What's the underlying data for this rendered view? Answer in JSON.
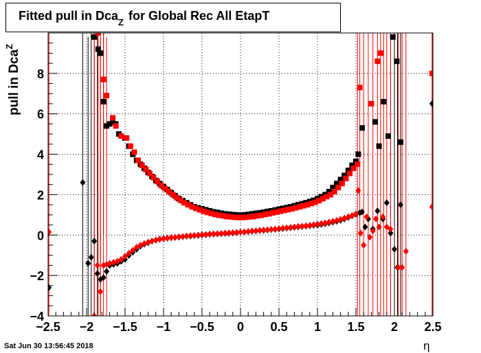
{
  "title": {
    "main": "Fitted pull in Dca",
    "sub": "Z",
    "rest": " for Global Rec All EtapT"
  },
  "axes": {
    "ylabel_main": "pull in Dca",
    "ylabel_sub": "Z",
    "xlabel": "η"
  },
  "timestamp": "Sat Jun 30 13:56:45 2018",
  "chart_data": {
    "type": "scatter",
    "xlim": [
      -2.5,
      2.5
    ],
    "ylim": [
      -4,
      10
    ],
    "x_ticks": [
      -2.5,
      -2,
      -1.5,
      -1,
      -0.5,
      0,
      0.5,
      1,
      1.5,
      2,
      2.5
    ],
    "x_tick_labels": [
      "−2.5",
      "−2",
      "−1.5",
      "−1",
      "−0.5",
      "0",
      "0.5",
      "1",
      "1.5",
      "2",
      "2.5"
    ],
    "y_ticks": [
      -4,
      -2,
      0,
      2,
      4,
      6,
      8
    ],
    "y_tick_labels": [
      "−4",
      "−2",
      "0",
      "2",
      "4",
      "6",
      "8"
    ],
    "series": [
      {
        "marker": "square",
        "color": "#000000",
        "x": [
          -1.98,
          -1.9,
          -1.85,
          -1.82,
          -1.78,
          -1.74,
          -1.7,
          -1.66,
          -1.62,
          -1.58,
          -1.5,
          -1.45,
          -1.4,
          -1.35,
          -1.3,
          -1.25,
          -1.2,
          -1.15,
          -1.1,
          -1.05,
          -1.0,
          -0.95,
          -0.9,
          -0.85,
          -0.8,
          -0.75,
          -0.7,
          -0.65,
          -0.6,
          -0.55,
          -0.5,
          -0.45,
          -0.4,
          -0.35,
          -0.3,
          -0.25,
          -0.2,
          -0.15,
          -0.1,
          -0.05,
          0.0,
          0.05,
          0.1,
          0.15,
          0.2,
          0.25,
          0.3,
          0.35,
          0.4,
          0.45,
          0.5,
          0.55,
          0.6,
          0.65,
          0.7,
          0.75,
          0.8,
          0.85,
          0.9,
          0.95,
          1.0,
          1.05,
          1.1,
          1.15,
          1.2,
          1.25,
          1.3,
          1.35,
          1.4,
          1.45,
          1.5,
          1.53,
          1.58,
          1.75,
          1.8,
          1.86,
          1.92,
          1.98,
          2.03,
          2.08
        ],
        "y": [
          10.5,
          9.8,
          9.2,
          9.0,
          6.6,
          5.4,
          5.5,
          5.6,
          5.5,
          5.0,
          4.8,
          4.4,
          4.0,
          3.7,
          3.5,
          3.3,
          3.1,
          2.9,
          2.7,
          2.55,
          2.4,
          2.25,
          2.1,
          1.95,
          1.8,
          1.7,
          1.6,
          1.5,
          1.4,
          1.35,
          1.3,
          1.25,
          1.2,
          1.15,
          1.12,
          1.08,
          1.05,
          1.03,
          1.01,
          1.0,
          0.98,
          1.0,
          1.02,
          1.05,
          1.08,
          1.1,
          1.13,
          1.17,
          1.2,
          1.24,
          1.28,
          1.32,
          1.36,
          1.4,
          1.45,
          1.5,
          1.55,
          1.6,
          1.66,
          1.72,
          1.8,
          1.9,
          2.0,
          2.15,
          2.35,
          2.55,
          2.75,
          2.95,
          3.2,
          3.45,
          3.65,
          4.0,
          5.3,
          5.6,
          4.4,
          6.6,
          4.9,
          9.8,
          8.6,
          4.6
        ]
      },
      {
        "marker": "square",
        "color": "#ff0000",
        "x": [
          -1.85,
          -1.78,
          -1.74,
          -1.66,
          -1.62,
          -1.55,
          -1.48,
          -1.43,
          -1.38,
          -1.33,
          -1.28,
          -1.23,
          -1.18,
          -1.13,
          -1.08,
          -1.03,
          -0.98,
          -0.93,
          -0.88,
          -0.83,
          -0.78,
          -0.73,
          -0.68,
          -0.63,
          -0.58,
          -0.53,
          -0.48,
          -0.43,
          -0.38,
          -0.33,
          -0.28,
          -0.23,
          -0.18,
          -0.13,
          -0.08,
          -0.03,
          0.02,
          0.07,
          0.12,
          0.17,
          0.22,
          0.27,
          0.32,
          0.37,
          0.42,
          0.47,
          0.52,
          0.57,
          0.62,
          0.67,
          0.72,
          0.77,
          0.82,
          0.87,
          0.92,
          0.97,
          1.02,
          1.07,
          1.12,
          1.17,
          1.22,
          1.27,
          1.32,
          1.37,
          1.42,
          1.47,
          1.52,
          1.55,
          1.7,
          1.78,
          1.82,
          2.49
        ],
        "y": [
          10.0,
          7.7,
          6.9,
          5.8,
          5.4,
          4.9,
          4.8,
          4.4,
          4.1,
          3.7,
          3.45,
          3.25,
          3.05,
          2.85,
          2.65,
          2.45,
          2.3,
          2.15,
          2.0,
          1.85,
          1.72,
          1.6,
          1.5,
          1.4,
          1.32,
          1.25,
          1.18,
          1.12,
          1.07,
          1.02,
          0.98,
          0.95,
          0.92,
          0.9,
          0.88,
          0.87,
          0.87,
          0.88,
          0.9,
          0.92,
          0.95,
          0.98,
          1.02,
          1.05,
          1.1,
          1.14,
          1.18,
          1.22,
          1.26,
          1.3,
          1.35,
          1.4,
          1.45,
          1.5,
          1.56,
          1.62,
          1.7,
          1.8,
          1.9,
          2.0,
          2.15,
          2.35,
          2.55,
          2.8,
          3.05,
          3.3,
          3.5,
          7.3,
          6.5,
          8.6,
          9.0,
          8.0
        ]
      },
      {
        "marker": "diamond",
        "color": "#000000",
        "x": [
          -2.49,
          -2.05,
          -1.98,
          -1.94,
          -1.9,
          -1.86,
          -1.82,
          -1.78,
          -1.74,
          -1.7,
          -1.65,
          -1.6,
          -1.55,
          -1.5,
          -1.45,
          -1.4,
          -1.35,
          -1.3,
          -1.25,
          -1.2,
          -1.15,
          -1.1,
          -1.05,
          -1.0,
          -0.95,
          -0.9,
          -0.85,
          -0.8,
          -0.75,
          -0.7,
          -0.65,
          -0.6,
          -0.55,
          -0.5,
          -0.45,
          -0.4,
          -0.35,
          -0.3,
          -0.25,
          -0.2,
          -0.15,
          -0.1,
          -0.05,
          0.0,
          0.05,
          0.1,
          0.15,
          0.2,
          0.25,
          0.3,
          0.35,
          0.4,
          0.45,
          0.5,
          0.55,
          0.6,
          0.65,
          0.7,
          0.75,
          0.8,
          0.85,
          0.9,
          0.95,
          1.0,
          1.05,
          1.1,
          1.15,
          1.2,
          1.25,
          1.3,
          1.35,
          1.4,
          1.45,
          1.5,
          1.55,
          1.58,
          1.62,
          1.66,
          1.72,
          1.78,
          1.85,
          1.9,
          1.95,
          2.0,
          2.04,
          2.08,
          2.49
        ],
        "y": [
          -2.6,
          2.6,
          -1.4,
          -1.1,
          -0.3,
          -1.9,
          -2.2,
          -2.1,
          -1.8,
          -1.5,
          -1.45,
          -1.4,
          -1.3,
          -1.2,
          -1.0,
          -0.85,
          -0.7,
          -0.55,
          -0.45,
          -0.38,
          -0.3,
          -0.25,
          -0.2,
          -0.17,
          -0.15,
          -0.13,
          -0.12,
          -0.1,
          -0.08,
          -0.06,
          -0.05,
          -0.03,
          -0.02,
          0.0,
          0.02,
          0.04,
          0.05,
          0.06,
          0.07,
          0.08,
          0.09,
          0.1,
          0.12,
          0.14,
          0.15,
          0.17,
          0.19,
          0.2,
          0.22,
          0.23,
          0.25,
          0.27,
          0.28,
          0.3,
          0.32,
          0.34,
          0.36,
          0.38,
          0.4,
          0.42,
          0.44,
          0.46,
          0.48,
          0.5,
          0.53,
          0.56,
          0.6,
          0.64,
          0.68,
          0.73,
          0.8,
          0.87,
          0.95,
          1.02,
          1.1,
          1.15,
          0.4,
          0.8,
          0.3,
          1.2,
          0.8,
          1.6,
          0.1,
          -0.7,
          -1.6,
          1.5,
          6.5
        ]
      },
      {
        "marker": "diamond",
        "color": "#ff0000",
        "x": [
          -2.49,
          -1.9,
          -1.86,
          -1.82,
          -1.78,
          -1.74,
          -1.7,
          -1.65,
          -1.6,
          -1.55,
          -1.5,
          -1.45,
          -1.4,
          -1.35,
          -1.3,
          -1.25,
          -1.2,
          -1.15,
          -1.1,
          -1.05,
          -1.0,
          -0.95,
          -0.9,
          -0.85,
          -0.8,
          -0.75,
          -0.7,
          -0.65,
          -0.6,
          -0.55,
          -0.5,
          -0.45,
          -0.4,
          -0.35,
          -0.3,
          -0.25,
          -0.2,
          -0.15,
          -0.1,
          -0.05,
          0.0,
          0.05,
          0.1,
          0.15,
          0.2,
          0.25,
          0.3,
          0.35,
          0.4,
          0.45,
          0.5,
          0.55,
          0.6,
          0.65,
          0.7,
          0.75,
          0.8,
          0.85,
          0.9,
          0.95,
          1.0,
          1.05,
          1.1,
          1.15,
          1.2,
          1.25,
          1.3,
          1.35,
          1.4,
          1.45,
          1.5,
          1.53,
          1.56,
          1.6,
          1.64,
          1.68,
          1.72,
          1.76,
          1.8,
          1.85,
          1.9,
          1.95,
          2.05,
          2.1,
          2.15,
          2.49
        ],
        "y": [
          0.15,
          -4.0,
          -1.5,
          -2.8,
          -1.5,
          -1.45,
          -1.4,
          -1.35,
          -1.3,
          -1.2,
          -1.05,
          -0.9,
          -0.75,
          -0.6,
          -0.5,
          -0.42,
          -0.35,
          -0.3,
          -0.25,
          -0.21,
          -0.18,
          -0.15,
          -0.13,
          -0.11,
          -0.09,
          -0.07,
          -0.05,
          -0.03,
          -0.02,
          0.0,
          0.02,
          0.03,
          0.05,
          0.06,
          0.07,
          0.08,
          0.1,
          0.11,
          0.12,
          0.13,
          0.15,
          0.16,
          0.18,
          0.2,
          0.21,
          0.23,
          0.25,
          0.26,
          0.28,
          0.3,
          0.32,
          0.34,
          0.36,
          0.38,
          0.4,
          0.42,
          0.44,
          0.46,
          0.48,
          0.51,
          0.54,
          0.57,
          0.6,
          0.64,
          0.68,
          0.72,
          0.78,
          0.84,
          0.9,
          0.97,
          1.05,
          2.2,
          0.1,
          -0.5,
          0.9,
          -0.1,
          0.2,
          0.8,
          0.4,
          0.9,
          0.4,
          0.3,
          -1.6,
          -1.6,
          -0.8,
          1.4
        ]
      }
    ],
    "error_bars": [
      {
        "color": "#000000",
        "x": [
          -2.05,
          -1.98,
          -1.94,
          -1.9,
          -1.86,
          -1.82,
          -1.78,
          1.95,
          2.0,
          2.04,
          2.08,
          2.49
        ],
        "lo": [
          -4,
          -4,
          -4,
          -4,
          -4,
          -4,
          0,
          -4,
          -4,
          -4,
          -4,
          -4
        ],
        "hi": [
          10,
          9.8,
          10,
          10,
          10,
          9.8,
          10,
          10,
          10,
          10,
          10,
          10
        ]
      },
      {
        "color": "#ff0000",
        "x": [
          -2.49,
          -1.9,
          -1.85,
          -1.82,
          -1.78,
          -1.74,
          1.52,
          1.55,
          1.6,
          1.66,
          1.72,
          1.78,
          1.82,
          1.86,
          1.9,
          1.95,
          2.05,
          2.1,
          2.15,
          2.49
        ],
        "lo": [
          -4,
          -4,
          -4,
          -4,
          -4,
          -4,
          -4,
          -4,
          -4,
          -4,
          -4,
          -4,
          -4,
          -4,
          -4,
          -4,
          -4,
          -4,
          -4,
          -4
        ],
        "hi": [
          10,
          10,
          10,
          10,
          10,
          9.8,
          10,
          10,
          10,
          10,
          10,
          10,
          10,
          10,
          10,
          10,
          10,
          10,
          10,
          10
        ]
      }
    ]
  }
}
